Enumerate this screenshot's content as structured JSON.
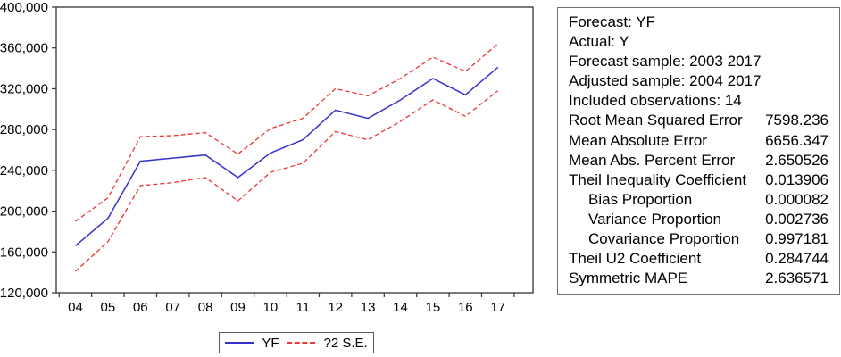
{
  "chart_data": {
    "type": "line",
    "title": "",
    "xlabel": "",
    "ylabel": "",
    "categories": [
      "04",
      "05",
      "06",
      "07",
      "08",
      "09",
      "10",
      "11",
      "12",
      "13",
      "14",
      "15",
      "16",
      "17"
    ],
    "series": [
      {
        "name": "YF",
        "color": "#3333cc",
        "dash": "solid",
        "values": [
          166000,
          193000,
          249000,
          252000,
          255000,
          233000,
          257000,
          270000,
          299000,
          291000,
          309000,
          330000,
          314000,
          341000
        ]
      },
      {
        "name": "+2 S.E.",
        "color": "#ee3333",
        "dash": "dashed",
        "values": [
          190000,
          213000,
          273000,
          274000,
          277000,
          256000,
          281000,
          291000,
          320000,
          313000,
          330000,
          351000,
          337000,
          364000
        ]
      },
      {
        "name": "-2 S.E.",
        "color": "#ee3333",
        "dash": "dashed",
        "values": [
          141000,
          170000,
          225000,
          228000,
          233000,
          210000,
          238000,
          247000,
          278000,
          270000,
          288000,
          309000,
          293000,
          318000
        ]
      }
    ],
    "ylim": [
      120000,
      400000
    ],
    "ytick_step": 40000,
    "ytick_labels": [
      "400,000",
      "360,000",
      "320,000",
      "280,000",
      "240,000",
      "200,000",
      "160,000",
      "120,000"
    ],
    "grid": false,
    "axis_color": "#333333",
    "legend_position": "bottom",
    "legend": [
      {
        "label": "YF",
        "color": "#3333cc",
        "dash": "solid"
      },
      {
        "label": "?2 S.E.",
        "color": "#ee3333",
        "dash": "dashed"
      }
    ]
  },
  "stats_box": {
    "rows": [
      {
        "label": "Forecast: YF",
        "value": "",
        "indent": false
      },
      {
        "label": "Actual: Y",
        "value": "",
        "indent": false
      },
      {
        "label": "Forecast sample: 2003 2017",
        "value": "",
        "indent": false
      },
      {
        "label": "Adjusted sample: 2004 2017",
        "value": "",
        "indent": false
      },
      {
        "label": "Included observations: 14",
        "value": "",
        "indent": false
      },
      {
        "label": "Root Mean Squared Error",
        "value": "7598.236",
        "indent": false
      },
      {
        "label": "Mean Absolute Error",
        "value": "6656.347",
        "indent": false
      },
      {
        "label": "Mean Abs. Percent Error",
        "value": "2.650526",
        "indent": false
      },
      {
        "label": "Theil Inequality Coefficient",
        "value": "0.013906",
        "indent": false
      },
      {
        "label": "Bias Proportion",
        "value": "0.000082",
        "indent": true
      },
      {
        "label": "Variance Proportion",
        "value": "0.002736",
        "indent": true
      },
      {
        "label": "Covariance Proportion",
        "value": "0.997181",
        "indent": true
      },
      {
        "label": "Theil U2 Coefficient",
        "value": "0.284744",
        "indent": false
      },
      {
        "label": "Symmetric MAPE",
        "value": "2.636571",
        "indent": false
      }
    ]
  }
}
